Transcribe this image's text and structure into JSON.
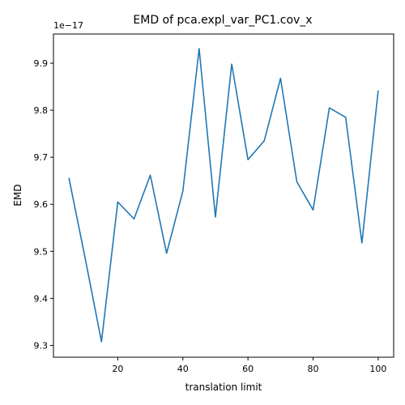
{
  "chart_data": {
    "type": "line",
    "title": "EMD of pca.expl_var_PC1.cov_x",
    "xlabel": "translation limit",
    "ylabel": "EMD",
    "offset_label": "1e−17",
    "x_ticks": [
      20,
      40,
      60,
      80,
      100
    ],
    "x_tick_labels": [
      "20",
      "40",
      "60",
      "80",
      "100"
    ],
    "y_ticks": [
      9.3,
      9.4,
      9.5,
      9.6,
      9.7,
      9.8,
      9.9
    ],
    "y_tick_labels": [
      "9.3",
      "9.4",
      "9.5",
      "9.6",
      "9.7",
      "9.8",
      "9.9"
    ],
    "xlim": [
      0.25,
      104.75
    ],
    "ylim": [
      9.275,
      9.962
    ],
    "grid": false,
    "legend": "none",
    "series": [
      {
        "color": "#1f77b4",
        "x": [
          5,
          10,
          15,
          20,
          25,
          30,
          35,
          40,
          45,
          50,
          55,
          60,
          65,
          70,
          75,
          80,
          85,
          90,
          95,
          100
        ],
        "y": [
          9.656,
          9.485,
          9.308,
          9.605,
          9.569,
          9.662,
          9.496,
          9.628,
          9.931,
          9.573,
          9.898,
          9.695,
          9.735,
          9.868,
          9.648,
          9.588,
          9.805,
          9.785,
          9.518,
          9.842
        ]
      }
    ]
  }
}
